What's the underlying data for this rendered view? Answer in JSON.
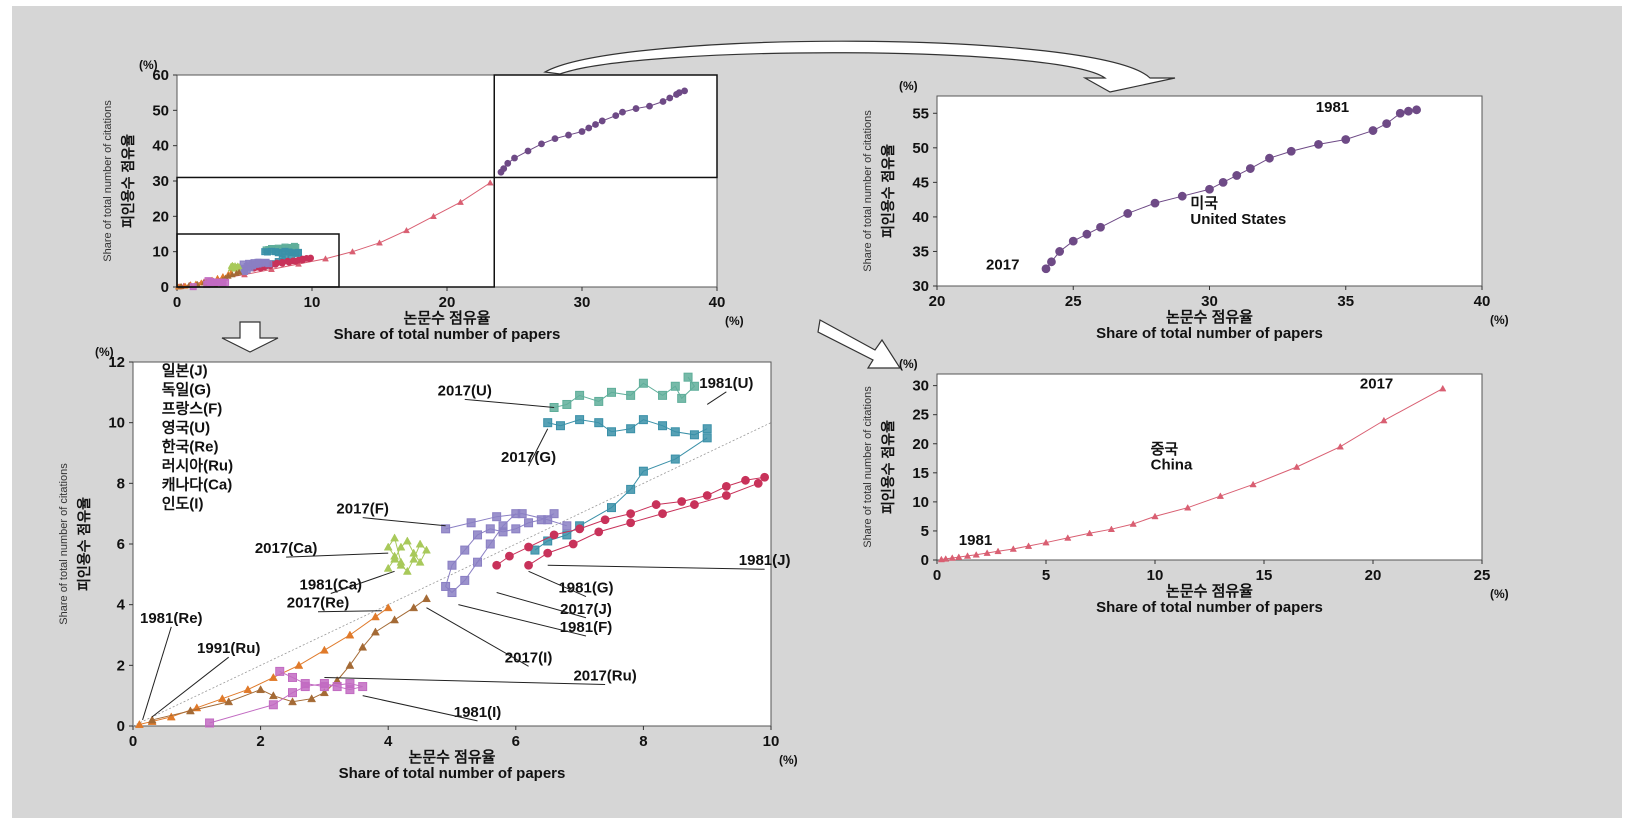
{
  "chart_data": [
    {
      "id": "overview",
      "type": "scatter",
      "xlabel_ko": "논문수 점유율",
      "xlabel_en": "Share of total number of papers",
      "ylabel_ko": "피인용수 점유율",
      "ylabel_en": "Share of total number of citations",
      "unit": "(%)",
      "xlim": [
        0,
        40
      ],
      "ylim": [
        0,
        60
      ],
      "xticks": [
        "0",
        "10",
        "20",
        "30",
        "40"
      ],
      "yticks": [
        "0",
        "10",
        "20",
        "30",
        "40",
        "50",
        "60"
      ],
      "series": [
        {
          "name": "미국",
          "color": "#6e4a86",
          "marker": "circle",
          "x": [
            37.6,
            37.2,
            37.0,
            36.5,
            36.0,
            35.0,
            34.0,
            33.0,
            32.5,
            31.5,
            31.0,
            30.5,
            30.0,
            29.0,
            28.0,
            27.0,
            26.0,
            25.0,
            24.5,
            24.2,
            24.0
          ],
          "y": [
            55.5,
            55.0,
            54.5,
            53.5,
            52.5,
            51.2,
            50.5,
            49.5,
            48.5,
            47.0,
            46.0,
            45.0,
            44.0,
            43.0,
            42.0,
            40.5,
            38.5,
            36.5,
            35.0,
            33.5,
            32.5
          ]
        },
        {
          "name": "중국",
          "color": "#d95f72",
          "marker": "triangle",
          "x": [
            0.2,
            0.5,
            1.0,
            2.0,
            3.0,
            5.0,
            7.0,
            9.0,
            11.0,
            13.0,
            15.0,
            17.0,
            19.0,
            21.0,
            23.2
          ],
          "y": [
            0.1,
            0.3,
            0.7,
            1.5,
            2.3,
            3.5,
            5.0,
            6.5,
            8.0,
            10.0,
            12.5,
            16.0,
            20.0,
            24.0,
            29.5
          ]
        }
      ]
    },
    {
      "id": "us",
      "type": "scatter",
      "xlabel_ko": "논문수 점유율",
      "xlabel_en": "Share of total number of papers",
      "ylabel_ko": "피인용수 점유율",
      "ylabel_en": "Share of total number of citations",
      "unit": "(%)",
      "xlim": [
        20,
        40
      ],
      "ylim": [
        30,
        57.5
      ],
      "xticks": [
        "20",
        "25",
        "30",
        "35",
        "40"
      ],
      "yticks": [
        "30",
        "35",
        "40",
        "45",
        "50",
        "55"
      ],
      "annotations": [
        "1981",
        "2017",
        "미국",
        "United States"
      ],
      "series": [
        {
          "name": "미국",
          "color": "#6e4a86",
          "marker": "circle",
          "x": [
            37.6,
            37.3,
            37.0,
            36.5,
            36.0,
            35.0,
            34.0,
            33.0,
            32.2,
            31.5,
            31.0,
            30.5,
            30.0,
            29.0,
            28.0,
            27.0,
            26.0,
            25.5,
            25.0,
            24.5,
            24.2,
            24.0
          ],
          "y": [
            55.5,
            55.3,
            55.0,
            53.5,
            52.5,
            51.2,
            50.5,
            49.5,
            48.5,
            47.0,
            46.0,
            45.0,
            44.0,
            43.0,
            42.0,
            40.5,
            38.5,
            37.5,
            36.5,
            35.0,
            33.5,
            32.5
          ]
        }
      ]
    },
    {
      "id": "china",
      "type": "scatter",
      "xlabel_ko": "논문수 점유율",
      "xlabel_en": "Share of total number of papers",
      "ylabel_ko": "피인용수 점유율",
      "ylabel_en": "Share of total number of citations",
      "unit": "(%)",
      "xlim": [
        0,
        25
      ],
      "ylim": [
        0,
        32
      ],
      "xticks": [
        "0",
        "5",
        "10",
        "15",
        "20",
        "25"
      ],
      "yticks": [
        "0",
        "5",
        "10",
        "15",
        "20",
        "25",
        "30"
      ],
      "annotations": [
        "1981",
        "2017",
        "중국",
        "China"
      ],
      "series": [
        {
          "name": "중국",
          "color": "#d95f72",
          "marker": "triangle",
          "x": [
            0.2,
            0.4,
            0.7,
            1.0,
            1.4,
            1.8,
            2.3,
            2.8,
            3.5,
            4.2,
            5.0,
            6.0,
            7.0,
            8.0,
            9.0,
            10.0,
            11.5,
            13.0,
            14.5,
            16.5,
            18.5,
            20.5,
            23.2
          ],
          "y": [
            0.1,
            0.2,
            0.35,
            0.5,
            0.7,
            0.9,
            1.2,
            1.5,
            1.9,
            2.4,
            3.0,
            3.8,
            4.6,
            5.3,
            6.2,
            7.5,
            9.0,
            11.0,
            13.0,
            16.0,
            19.5,
            24.0,
            29.5
          ]
        }
      ]
    },
    {
      "id": "others",
      "type": "scatter",
      "xlabel_ko": "논문수 점유율",
      "xlabel_en": "Share of total number of papers",
      "ylabel_ko": "피인용수 점유율",
      "ylabel_en": "Share of total number of citations",
      "unit": "(%)",
      "xlim": [
        0,
        10
      ],
      "ylim": [
        0,
        12
      ],
      "xticks": [
        "0",
        "2",
        "4",
        "6",
        "8",
        "10"
      ],
      "yticks": [
        "0",
        "2",
        "4",
        "6",
        "8",
        "10",
        "12"
      ],
      "legend": [
        "일본(J)",
        "독일(G)",
        "프랑스(F)",
        "영국(U)",
        "한국(Re)",
        "러시아(Ru)",
        "캐나다(Ca)",
        "인도(I)"
      ],
      "annotations": [
        "2017(U)",
        "1981(U)",
        "2017(G)",
        "2017(F)",
        "2017(Ca)",
        "1981(J)",
        "1981(Ca)",
        "1981(G)",
        "2017(Re)",
        "2017(J)",
        "1981(Re)",
        "1981(F)",
        "1991(Ru)",
        "2017(I)",
        "2017(Ru)",
        "1981(I)"
      ],
      "series": [
        {
          "name": "영국(U)",
          "color": "#5fae9a",
          "marker": "square",
          "x": [
            8.7,
            8.8,
            8.6,
            8.5,
            8.3,
            8.0,
            7.8,
            7.5,
            7.3,
            7.0,
            6.8,
            6.6
          ],
          "y": [
            11.5,
            11.2,
            10.8,
            11.2,
            10.9,
            11.3,
            10.9,
            11.0,
            10.7,
            10.9,
            10.6,
            10.5
          ]
        },
        {
          "name": "독일(G)",
          "color": "#3a90a8",
          "marker": "square",
          "x": [
            9.0,
            8.8,
            8.5,
            8.3,
            8.0,
            7.8,
            7.5,
            7.3,
            7.0,
            6.7,
            6.5
          ],
          "y": [
            9.8,
            9.6,
            9.7,
            9.9,
            10.1,
            9.8,
            9.7,
            10.0,
            10.1,
            9.9,
            10.0
          ]
        },
        {
          "name": "독일(G)",
          "color": "#3a90a8",
          "marker": "square",
          "x": [
            9.0,
            8.5,
            8.0,
            7.8,
            7.5,
            7.0,
            6.8,
            6.5,
            6.3
          ],
          "y": [
            9.5,
            8.8,
            8.4,
            7.8,
            7.2,
            6.6,
            6.3,
            6.1,
            5.8
          ]
        },
        {
          "name": "일본(J)",
          "color": "#c8325a",
          "marker": "circle",
          "x": [
            9.9,
            9.6,
            9.3,
            9.0,
            8.6,
            8.2,
            7.8,
            7.4,
            7.0,
            6.6,
            6.2,
            5.9,
            5.7
          ],
          "y": [
            8.2,
            8.1,
            7.9,
            7.6,
            7.4,
            7.3,
            7.0,
            6.8,
            6.5,
            6.3,
            5.9,
            5.6,
            5.3
          ]
        },
        {
          "name": "일본(J)",
          "color": "#c8325a",
          "marker": "circle",
          "x": [
            9.8,
            9.3,
            8.8,
            8.3,
            7.8,
            7.3,
            6.9,
            6.5,
            6.2
          ],
          "y": [
            8.0,
            7.6,
            7.3,
            7.0,
            6.7,
            6.4,
            6.0,
            5.7,
            5.3
          ]
        },
        {
          "name": "프랑스(F)",
          "color": "#8a7fc3",
          "marker": "square",
          "x": [
            6.6,
            6.4,
            6.2,
            6.0,
            5.8,
            5.6,
            5.4,
            5.2,
            5.0,
            4.9,
            5.0,
            5.2,
            5.4,
            5.6,
            5.8,
            6.0
          ],
          "y": [
            7.0,
            6.8,
            6.7,
            6.5,
            6.4,
            6.5,
            6.3,
            5.8,
            5.3,
            4.6,
            4.4,
            4.8,
            5.4,
            6.0,
            6.6,
            7.0
          ]
        },
        {
          "name": "프랑스(F)",
          "color": "#8a7fc3",
          "marker": "square",
          "x": [
            4.9,
            5.3,
            5.7,
            6.1,
            6.5,
            6.8
          ],
          "y": [
            6.5,
            6.7,
            6.9,
            7.0,
            6.8,
            6.6
          ]
        },
        {
          "name": "캐나다(Ca)",
          "color": "#a8c95a",
          "marker": "triangle",
          "x": [
            4.0,
            4.1,
            4.2,
            4.3,
            4.4,
            4.5,
            4.6,
            4.5,
            4.4,
            4.3,
            4.2,
            4.1,
            4.0,
            4.1,
            4.2
          ],
          "y": [
            5.2,
            5.5,
            5.9,
            6.1,
            5.7,
            5.4,
            5.8,
            6.0,
            5.5,
            5.1,
            5.3,
            5.6,
            5.9,
            6.2,
            5.4
          ]
        },
        {
          "name": "한국(Re)",
          "color": "#e07a2a",
          "marker": "triangle",
          "x": [
            0.1,
            0.3,
            0.6,
            1.0,
            1.4,
            1.8,
            2.2,
            2.6,
            3.0,
            3.4,
            3.8,
            4.0
          ],
          "y": [
            0.05,
            0.15,
            0.3,
            0.6,
            0.9,
            1.2,
            1.6,
            2.0,
            2.5,
            3.0,
            3.6,
            3.9
          ]
        },
        {
          "name": "러시아(Ru)",
          "color": "#a46a35",
          "marker": "triangle",
          "x": [
            0.3,
            0.9,
            1.5,
            2.0,
            2.2,
            2.5,
            2.8,
            3.0,
            3.2,
            3.4,
            3.6,
            3.8,
            4.1,
            4.4,
            4.6
          ],
          "y": [
            0.2,
            0.5,
            0.8,
            1.2,
            1.0,
            0.8,
            0.9,
            1.1,
            1.5,
            2.0,
            2.6,
            3.1,
            3.5,
            3.9,
            4.2
          ]
        },
        {
          "name": "인도(I)",
          "color": "#c26bc2",
          "marker": "square",
          "x": [
            1.2,
            2.2,
            2.5,
            2.7,
            3.0,
            3.2,
            3.4,
            3.6,
            3.4,
            3.0,
            2.7,
            2.5,
            2.3
          ],
          "y": [
            0.1,
            0.7,
            1.1,
            1.3,
            1.4,
            1.3,
            1.2,
            1.3,
            1.4,
            1.3,
            1.4,
            1.6,
            1.8
          ]
        }
      ]
    }
  ]
}
